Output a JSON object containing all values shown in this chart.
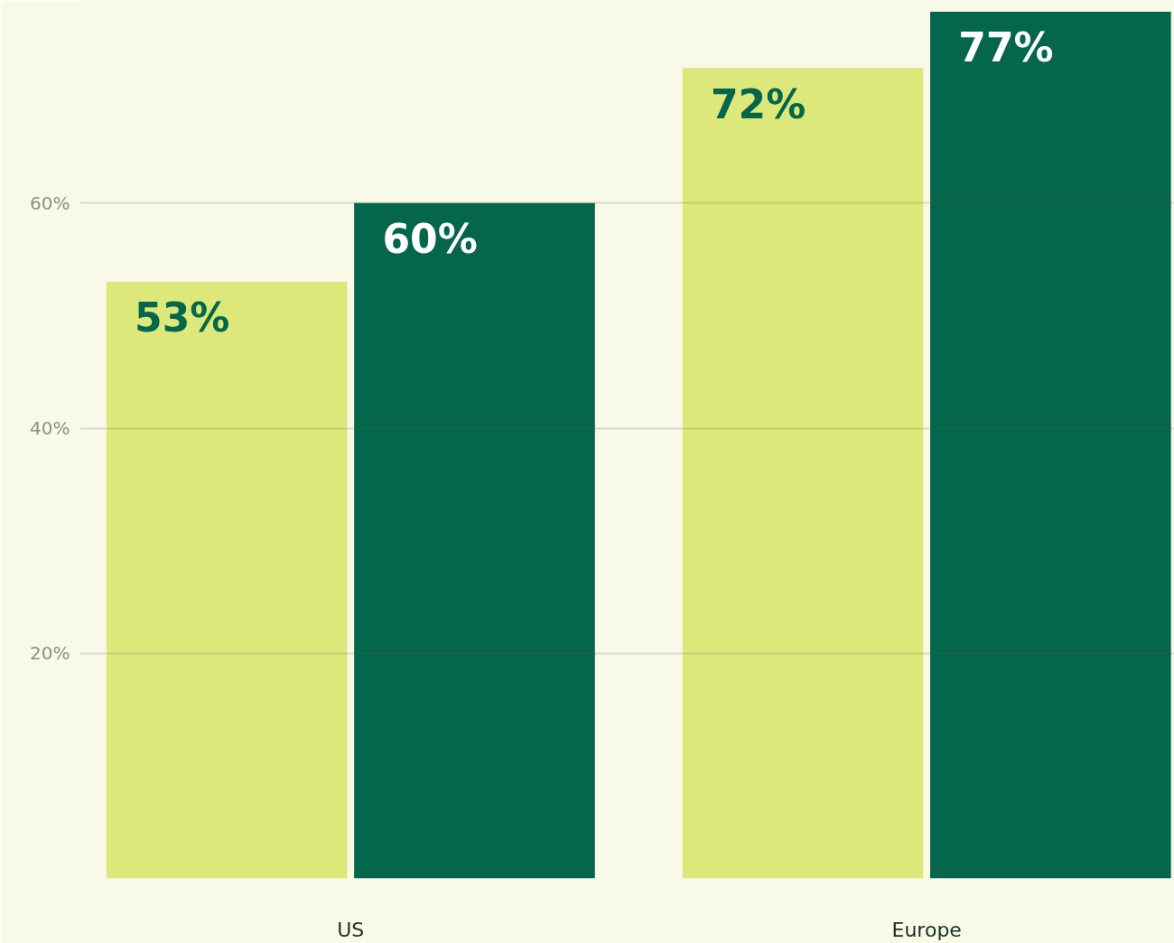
{
  "chart_data": {
    "type": "bar",
    "categories": [
      "US",
      "Europe"
    ],
    "series": [
      {
        "color": "#dde87a",
        "values": [
          53,
          72
        ],
        "value_labels": [
          "53%",
          "72%"
        ]
      },
      {
        "color": "#04664a",
        "values": [
          60,
          77
        ],
        "value_labels": [
          "60%",
          "77%"
        ]
      }
    ],
    "ylim": [
      0,
      78
    ],
    "yticks": [
      {
        "value": 0,
        "label": null
      },
      {
        "value": 20,
        "label": "20%"
      },
      {
        "value": 40,
        "label": "40%"
      },
      {
        "value": 60,
        "label": "60%"
      }
    ],
    "grid": "y"
  }
}
